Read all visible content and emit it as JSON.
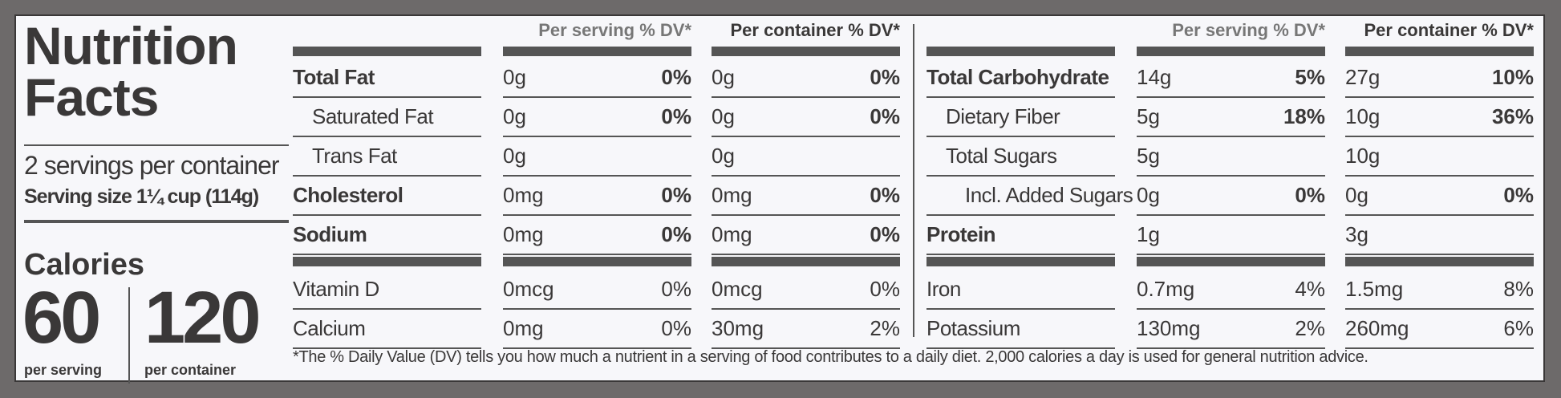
{
  "title": [
    "Nutrition",
    "Facts"
  ],
  "servings": "2 servings per container",
  "serving_size": "Serving size 1¼ cup (114g)",
  "calories": {
    "label": "Calories",
    "per_serving": "60",
    "per_serving_label": "per serving",
    "per_container": "120",
    "per_container_label": "per container"
  },
  "tables": [
    {
      "headers": [
        "Per serving % DV*",
        "Per container % DV*"
      ],
      "nutrients": [
        {
          "name": "Total Fat",
          "weight": "bold",
          "indent": 0,
          "serving": {
            "amount": "0g",
            "dv": "0%"
          },
          "container": {
            "amount": "0g",
            "dv": "0%"
          }
        },
        {
          "name": "Saturated Fat",
          "weight": "normal",
          "indent": 1,
          "serving": {
            "amount": "0g",
            "dv": "0%"
          },
          "container": {
            "amount": "0g",
            "dv": "0%"
          }
        },
        {
          "name": "Trans Fat",
          "weight": "normal",
          "indent": 1,
          "serving": {
            "amount": "0g"
          },
          "container": {
            "amount": "0g"
          }
        },
        {
          "name": "Cholesterol",
          "weight": "bold",
          "indent": 0,
          "serving": {
            "amount": "0mg",
            "dv": "0%"
          },
          "container": {
            "amount": "0mg",
            "dv": "0%"
          }
        },
        {
          "name": "Sodium",
          "weight": "bold",
          "indent": 0,
          "serving": {
            "amount": "0mg",
            "dv": "0%"
          },
          "container": {
            "amount": "0mg",
            "dv": "0%"
          }
        }
      ],
      "vitamins": [
        {
          "name": "Vitamin D",
          "serving": {
            "amount": "0mcg",
            "dv": "0%"
          },
          "container": {
            "amount": "0mcg",
            "dv": "0%"
          }
        },
        {
          "name": "Calcium",
          "serving": {
            "amount": "0mg",
            "dv": "0%"
          },
          "container": {
            "amount": "30mg",
            "dv": "2%"
          }
        }
      ]
    },
    {
      "headers": [
        "Per serving % DV*",
        "Per container % DV*"
      ],
      "nutrients": [
        {
          "name": "Total Carbohydrate",
          "weight": "bold",
          "indent": 0,
          "serving": {
            "amount": "14g",
            "dv": "5%"
          },
          "container": {
            "amount": "27g",
            "dv": "10%"
          }
        },
        {
          "name": "Dietary Fiber",
          "weight": "normal",
          "indent": 1,
          "serving": {
            "amount": "5g",
            "dv": "18%"
          },
          "container": {
            "amount": "10g",
            "dv": "36%"
          }
        },
        {
          "name": "Total Sugars",
          "weight": "normal",
          "indent": 1,
          "serving": {
            "amount": "5g"
          },
          "container": {
            "amount": "10g"
          }
        },
        {
          "name": "Incl. Added Sugars",
          "weight": "normal",
          "indent": 2,
          "serving": {
            "amount": "0g",
            "dv": "0%"
          },
          "container": {
            "amount": "0g",
            "dv": "0%"
          }
        },
        {
          "name": "Protein",
          "weight": "bold",
          "indent": 0,
          "serving": {
            "amount": "1g"
          },
          "container": {
            "amount": "3g"
          }
        }
      ],
      "vitamins": [
        {
          "name": "Iron",
          "serving": {
            "amount": "0.7mg",
            "dv": "4%"
          },
          "container": {
            "amount": "1.5mg",
            "dv": "8%"
          }
        },
        {
          "name": "Potassium",
          "serving": {
            "amount": "130mg",
            "dv": "2%"
          },
          "container": {
            "amount": "260mg",
            "dv": "6%"
          }
        }
      ]
    }
  ],
  "footnote": "*The % Daily Value (DV) tells you how much a nutrient in a serving of food contributes to a daily diet. 2,000 calories a day is used for general nutrition advice."
}
